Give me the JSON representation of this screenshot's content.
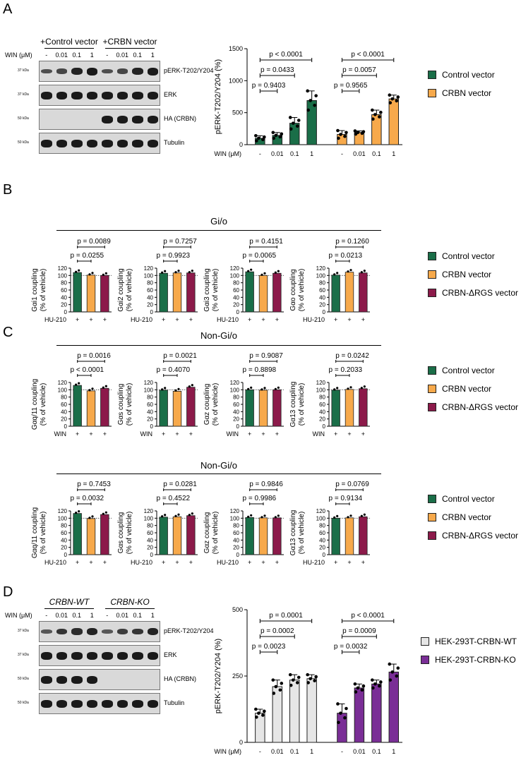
{
  "panels": {
    "A": "A",
    "B": "B",
    "C": "C",
    "D": "D"
  },
  "colors": {
    "green": "#1a6e48",
    "orange": "#f7a94b",
    "maroon": "#8c1a4a",
    "gray": "#e6e6e6",
    "purple": "#7a2e96"
  },
  "blotA": {
    "groups": [
      "+Control vector",
      "+CRBN vector"
    ],
    "win_label": "WIN (μM)",
    "lanes": [
      "-",
      "0.01",
      "0.1",
      "1",
      "-",
      "0.01",
      "0.1",
      "1"
    ],
    "rows": [
      {
        "label": "pERK-T202/Y204",
        "kda": "37 kDa"
      },
      {
        "label": "ERK",
        "kda": "37 kDa"
      },
      {
        "label": "HA (CRBN)",
        "kda": "50 kDa"
      },
      {
        "label": "Tubulin",
        "kda": "50 kDa"
      }
    ]
  },
  "blotD": {
    "groups": [
      "CRBN-WT",
      "CRBN-KO"
    ],
    "win_label": "WIN (μM)",
    "lanes": [
      "-",
      "0.01",
      "0.1",
      "1",
      "-",
      "0.01",
      "0.1",
      "1"
    ],
    "rows": [
      {
        "label": "pERK-T202/Y204",
        "kda": "37 kDa"
      },
      {
        "label": "ERK",
        "kda": "37 kDa"
      },
      {
        "label": "HA (CRBN)",
        "kda": "50 kDa"
      },
      {
        "label": "Tubulin",
        "kda": "50 kDa"
      }
    ]
  },
  "legends": {
    "A": [
      "Control vector",
      "CRBN vector"
    ],
    "B": [
      "Control vector",
      "CRBN vector",
      "CRBN-ΔRGS vector"
    ],
    "C1": [
      "Control vector",
      "CRBN vector",
      "CRBN-ΔRGS vector"
    ],
    "C2": [
      "Control vector",
      "CRBN vector",
      "CRBN-ΔRGS vector"
    ],
    "D": [
      "HEK-293T-CRBN-WT",
      "HEK-293T-CRBN-KO"
    ]
  },
  "section_titles": {
    "B": "Gi/o",
    "C1": "Non-Gi/o",
    "C2": "Non-Gi/o"
  },
  "chart_data": [
    {
      "id": "A",
      "type": "bar",
      "ylabel": "pERK-T202/Y204 (%)",
      "ylim": [
        0,
        1500
      ],
      "yticks": [
        "0",
        "500",
        "1000",
        "1500"
      ],
      "xlabel": "WIN (μM)",
      "categories": [
        "-",
        "0.01",
        "0.1",
        "1",
        "-",
        "0.01",
        "0.1",
        "1"
      ],
      "values": [
        100,
        145,
        335,
        690,
        160,
        190,
        470,
        715
      ],
      "errors": [
        40,
        45,
        90,
        150,
        60,
        25,
        70,
        60
      ],
      "colors": [
        "green",
        "green",
        "green",
        "green",
        "orange",
        "orange",
        "orange",
        "orange"
      ],
      "pvalues": [
        {
          "text": "p = 0.9403",
          "from": 0,
          "to": 1,
          "level": 0
        },
        {
          "text": "p = 0.0433",
          "from": 0,
          "to": 2,
          "level": 1
        },
        {
          "text": "p < 0.0001",
          "from": 0,
          "to": 3,
          "level": 2
        },
        {
          "text": "p = 0.9565",
          "from": 4,
          "to": 5,
          "level": 0
        },
        {
          "text": "p = 0.0057",
          "from": 4,
          "to": 6,
          "level": 1
        },
        {
          "text": "p < 0.0001",
          "from": 4,
          "to": 7,
          "level": 2
        }
      ]
    },
    {
      "id": "B1",
      "type": "bar",
      "ylabel1": "Gαi1 coupling",
      "ylabel2": "(% of vehicle)",
      "ylim": [
        0,
        120
      ],
      "yticks": [
        "0",
        "20",
        "40",
        "60",
        "80",
        "100",
        "120"
      ],
      "xlabel": "HU-210",
      "categories": [
        "+",
        "+",
        "+"
      ],
      "values": [
        108,
        101,
        100
      ],
      "colors": [
        "green",
        "orange",
        "maroon"
      ],
      "pvalues": [
        {
          "text": "p = 0.0255",
          "from": 0,
          "to": 1,
          "level": 0
        },
        {
          "text": "p = 0.0089",
          "from": 0,
          "to": 2,
          "level": 1
        }
      ]
    },
    {
      "id": "B2",
      "type": "bar",
      "ylabel1": "Gαi2 coupling",
      "ylabel2": "(% of vehicle)",
      "ylim": [
        0,
        120
      ],
      "yticks": [
        "0",
        "20",
        "40",
        "60",
        "80",
        "100",
        "120"
      ],
      "xlabel": "HU-210",
      "categories": [
        "+",
        "+",
        "+"
      ],
      "values": [
        106,
        107,
        107
      ],
      "colors": [
        "green",
        "orange",
        "maroon"
      ],
      "pvalues": [
        {
          "text": "p = 0.9923",
          "from": 0,
          "to": 1,
          "level": 0
        },
        {
          "text": "p = 0.7257",
          "from": 0,
          "to": 2,
          "level": 1
        }
      ]
    },
    {
      "id": "B3",
      "type": "bar",
      "ylabel1": "Gαi3 coupling",
      "ylabel2": "(% of vehicle)",
      "ylim": [
        0,
        120
      ],
      "yticks": [
        "0",
        "20",
        "40",
        "60",
        "80",
        "100",
        "120"
      ],
      "xlabel": "HU-210",
      "categories": [
        "+",
        "+",
        "+"
      ],
      "values": [
        110,
        100,
        106
      ],
      "colors": [
        "green",
        "orange",
        "maroon"
      ],
      "pvalues": [
        {
          "text": "p = 0.0065",
          "from": 0,
          "to": 1,
          "level": 0
        },
        {
          "text": "p = 0.4151",
          "from": 0,
          "to": 2,
          "level": 1
        }
      ]
    },
    {
      "id": "B4",
      "type": "bar",
      "ylabel1": "Gαo coupling",
      "ylabel2": "(% of vehicle)",
      "ylim": [
        0,
        120
      ],
      "yticks": [
        "0",
        "20",
        "40",
        "60",
        "80",
        "100",
        "120"
      ],
      "xlabel": "HU-210",
      "categories": [
        "+",
        "+",
        "+"
      ],
      "values": [
        101,
        109,
        107
      ],
      "colors": [
        "green",
        "orange",
        "maroon"
      ],
      "pvalues": [
        {
          "text": "p = 0.0213",
          "from": 0,
          "to": 1,
          "level": 0
        },
        {
          "text": "p = 0.1260",
          "from": 0,
          "to": 2,
          "level": 1
        }
      ]
    },
    {
      "id": "C1",
      "type": "bar",
      "ylabel1": "Gαq/11 coupling",
      "ylabel2": "(% of vehicle)",
      "ylim": [
        0,
        120
      ],
      "yticks": [
        "0",
        "20",
        "40",
        "60",
        "80",
        "100",
        "120"
      ],
      "xlabel": "WIN",
      "categories": [
        "+",
        "+",
        "+"
      ],
      "values": [
        112,
        97,
        104
      ],
      "colors": [
        "green",
        "orange",
        "maroon"
      ],
      "pvalues": [
        {
          "text": "p < 0.0001",
          "from": 0,
          "to": 1,
          "level": 0
        },
        {
          "text": "p = 0.0016",
          "from": 0,
          "to": 2,
          "level": 1
        }
      ]
    },
    {
      "id": "C2",
      "type": "bar",
      "ylabel1": "Gαs coupling",
      "ylabel2": "(% of vehicle)",
      "ylim": [
        0,
        120
      ],
      "yticks": [
        "0",
        "20",
        "40",
        "60",
        "80",
        "100",
        "120"
      ],
      "xlabel": "WIN",
      "categories": [
        "+",
        "+",
        "+"
      ],
      "values": [
        99,
        96,
        107
      ],
      "colors": [
        "green",
        "orange",
        "maroon"
      ],
      "pvalues": [
        {
          "text": "p = 0.4070",
          "from": 0,
          "to": 1,
          "level": 0
        },
        {
          "text": "p = 0.0021",
          "from": 0,
          "to": 2,
          "level": 1
        }
      ]
    },
    {
      "id": "C3",
      "type": "bar",
      "ylabel1": "Gαz coupling",
      "ylabel2": "(% of vehicle)",
      "ylim": [
        0,
        120
      ],
      "yticks": [
        "0",
        "20",
        "40",
        "60",
        "80",
        "100",
        "120"
      ],
      "xlabel": "WIN",
      "categories": [
        "+",
        "+",
        "+"
      ],
      "values": [
        100,
        99,
        100
      ],
      "colors": [
        "green",
        "orange",
        "maroon"
      ],
      "pvalues": [
        {
          "text": "p = 0.8898",
          "from": 0,
          "to": 1,
          "level": 0
        },
        {
          "text": "p = 0.9087",
          "from": 0,
          "to": 2,
          "level": 1
        }
      ]
    },
    {
      "id": "C4",
      "type": "bar",
      "ylabel1": "Gα13 coupling",
      "ylabel2": "(% of vehicle)",
      "ylim": [
        0,
        120
      ],
      "yticks": [
        "0",
        "20",
        "40",
        "60",
        "80",
        "100",
        "120"
      ],
      "xlabel": "WIN",
      "categories": [
        "+",
        "+",
        "+"
      ],
      "values": [
        99,
        101,
        103
      ],
      "colors": [
        "green",
        "orange",
        "maroon"
      ],
      "pvalues": [
        {
          "text": "p = 0.2033",
          "from": 0,
          "to": 1,
          "level": 0
        },
        {
          "text": "p = 0.0242",
          "from": 0,
          "to": 2,
          "level": 1
        }
      ]
    },
    {
      "id": "C5",
      "type": "bar",
      "ylabel1": "Gαq/11 coupling",
      "ylabel2": "(% of vehicle)",
      "ylim": [
        0,
        120
      ],
      "yticks": [
        "0",
        "20",
        "40",
        "60",
        "80",
        "100",
        "120"
      ],
      "xlabel": "HU-210",
      "categories": [
        "+",
        "+",
        "+"
      ],
      "values": [
        113,
        99,
        110
      ],
      "colors": [
        "green",
        "orange",
        "maroon"
      ],
      "pvalues": [
        {
          "text": "p = 0.0032",
          "from": 0,
          "to": 1,
          "level": 0
        },
        {
          "text": "p = 0.7453",
          "from": 0,
          "to": 2,
          "level": 1
        }
      ]
    },
    {
      "id": "C6",
      "type": "bar",
      "ylabel1": "Gαs coupling",
      "ylabel2": "(% of vehicle)",
      "ylim": [
        0,
        120
      ],
      "yticks": [
        "0",
        "20",
        "40",
        "60",
        "80",
        "100",
        "120"
      ],
      "xlabel": "HU-210",
      "categories": [
        "+",
        "+",
        "+"
      ],
      "values": [
        103,
        104,
        107
      ],
      "colors": [
        "green",
        "orange",
        "maroon"
      ],
      "pvalues": [
        {
          "text": "p = 0.4522",
          "from": 0,
          "to": 1,
          "level": 0
        },
        {
          "text": "p = 0.0281",
          "from": 0,
          "to": 2,
          "level": 1
        }
      ]
    },
    {
      "id": "C7",
      "type": "bar",
      "ylabel1": "Gαz coupling",
      "ylabel2": "(% of vehicle)",
      "ylim": [
        0,
        120
      ],
      "yticks": [
        "0",
        "20",
        "40",
        "60",
        "80",
        "100",
        "120"
      ],
      "xlabel": "HU-210",
      "categories": [
        "+",
        "+",
        "+"
      ],
      "values": [
        102,
        101,
        101
      ],
      "colors": [
        "green",
        "orange",
        "maroon"
      ],
      "pvalues": [
        {
          "text": "p = 0.9986",
          "from": 0,
          "to": 1,
          "level": 0
        },
        {
          "text": "p = 0.9846",
          "from": 0,
          "to": 2,
          "level": 1
        }
      ]
    },
    {
      "id": "C8",
      "type": "bar",
      "ylabel1": "Gα13 coupling",
      "ylabel2": "(% of vehicle)",
      "ylim": [
        0,
        120
      ],
      "yticks": [
        "0",
        "20",
        "40",
        "60",
        "80",
        "100",
        "120"
      ],
      "xlabel": "HU-210",
      "categories": [
        "+",
        "+",
        "+"
      ],
      "values": [
        100,
        101,
        104
      ],
      "colors": [
        "green",
        "orange",
        "maroon"
      ],
      "pvalues": [
        {
          "text": "p = 0.9134",
          "from": 0,
          "to": 1,
          "level": 0
        },
        {
          "text": "p = 0.0769",
          "from": 0,
          "to": 2,
          "level": 1
        }
      ]
    },
    {
      "id": "D",
      "type": "bar",
      "ylabel": "pERK-T202/Y204 (%)",
      "ylim": [
        0,
        500
      ],
      "yticks": [
        "0",
        "250",
        "500"
      ],
      "xlabel": "WIN (μM)",
      "categories": [
        "-",
        "0.01",
        "0.1",
        "1",
        "-",
        "0.01",
        "0.1",
        "1"
      ],
      "values": [
        110,
        210,
        235,
        240,
        110,
        205,
        220,
        265
      ],
      "errors": [
        15,
        25,
        20,
        15,
        35,
        15,
        15,
        30
      ],
      "colors": [
        "gray",
        "gray",
        "gray",
        "gray",
        "purple",
        "purple",
        "purple",
        "purple"
      ],
      "pvalues": [
        {
          "text": "p = 0.0023",
          "from": 0,
          "to": 1,
          "level": 0
        },
        {
          "text": "p = 0.0002",
          "from": 0,
          "to": 2,
          "level": 1
        },
        {
          "text": "p = 0.0001",
          "from": 0,
          "to": 3,
          "level": 2
        },
        {
          "text": "p = 0.0032",
          "from": 4,
          "to": 5,
          "level": 0
        },
        {
          "text": "p = 0.0009",
          "from": 4,
          "to": 6,
          "level": 1
        },
        {
          "text": "p < 0.0001",
          "from": 4,
          "to": 7,
          "level": 2
        }
      ]
    }
  ]
}
